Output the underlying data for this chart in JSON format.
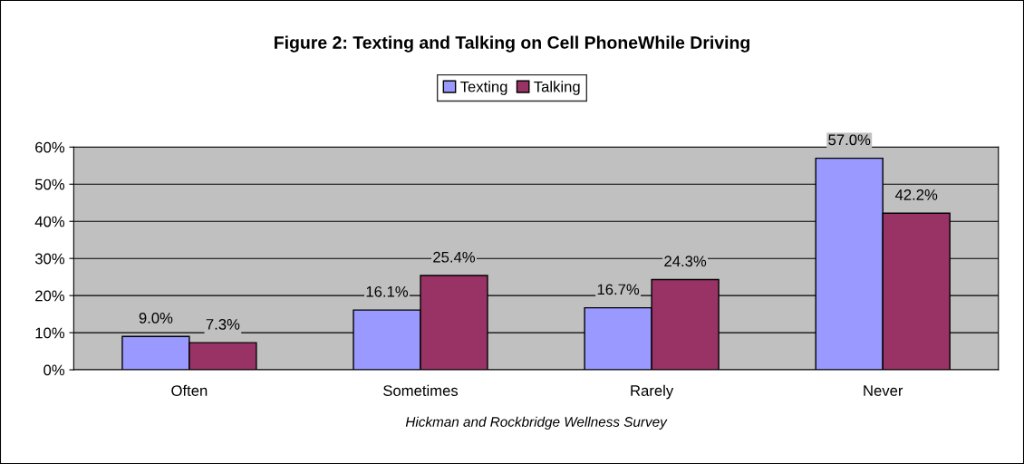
{
  "chart_data": {
    "type": "bar",
    "title": "Figure 2: Texting and Talking on Cell PhoneWhile Driving",
    "xlabel": "Hickman and Rockbridge Wellness Survey",
    "categories": [
      "Often",
      "Sometimes",
      "Rarely",
      "Never"
    ],
    "series": [
      {
        "name": "Texting",
        "color": "#9999ff",
        "values": [
          9.0,
          16.1,
          16.7,
          57.0
        ],
        "value_labels": [
          "9.0%",
          "16.1%",
          "16.7%",
          "57.0%"
        ]
      },
      {
        "name": "Talking",
        "color": "#993366",
        "values": [
          7.3,
          25.4,
          24.3,
          42.2
        ],
        "value_labels": [
          "7.3%",
          "25.4%",
          "24.3%",
          "42.2%"
        ]
      }
    ],
    "ylim": [
      0,
      60
    ],
    "yticks": [
      {
        "value": 0,
        "label": "0%"
      },
      {
        "value": 10,
        "label": "10%"
      },
      {
        "value": 20,
        "label": "20%"
      },
      {
        "value": 30,
        "label": "30%"
      },
      {
        "value": 40,
        "label": "40%"
      },
      {
        "value": 50,
        "label": "50%"
      },
      {
        "value": 60,
        "label": "60%"
      }
    ],
    "grid": "y",
    "legend": "top"
  }
}
